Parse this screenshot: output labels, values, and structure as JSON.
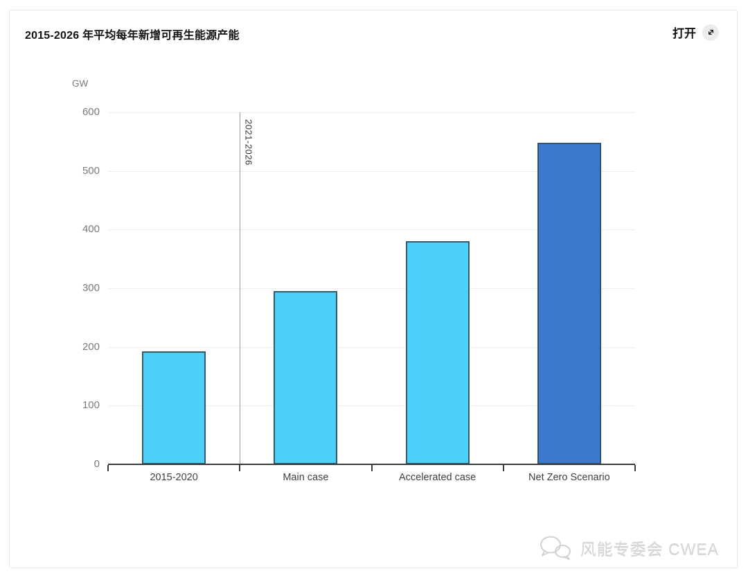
{
  "header": {
    "title": "2015-2026 年平均每年新增可再生能源产能",
    "open_button": {
      "label": "打开",
      "icon": "expand-diagonal-icon"
    }
  },
  "chart_data": {
    "type": "bar",
    "title": "2015-2026 年平均每年新增可再生能源产能",
    "unit_label": "GW",
    "categories": [
      "2015-2020",
      "Main case",
      "Accelerated case",
      "Net Zero Scenario"
    ],
    "values": [
      193,
      295,
      380,
      548
    ],
    "ylim": [
      0,
      600
    ],
    "y_ticks": [
      0,
      100,
      200,
      300,
      400,
      500,
      600
    ],
    "grid": true,
    "legend": "none",
    "annotation": {
      "label": "2021-2026",
      "boundary_index": 1
    },
    "colors": {
      "bar_fill": [
        "#4cd0f7",
        "#4cd0f7",
        "#4cd0f7",
        "#3d79cc"
      ],
      "bar_border": [
        "#33596a",
        "#33596a",
        "#33596a",
        "#35506b"
      ],
      "gridline": "#ededed",
      "axis": "#3a3a3a",
      "tick_label": "#7a7a7a",
      "category_label": "#3f3f3f",
      "annotation_line": "#9b9b9b"
    }
  },
  "watermark": {
    "icon": "wechat-icon",
    "text": "风能专委会 CWEA"
  }
}
